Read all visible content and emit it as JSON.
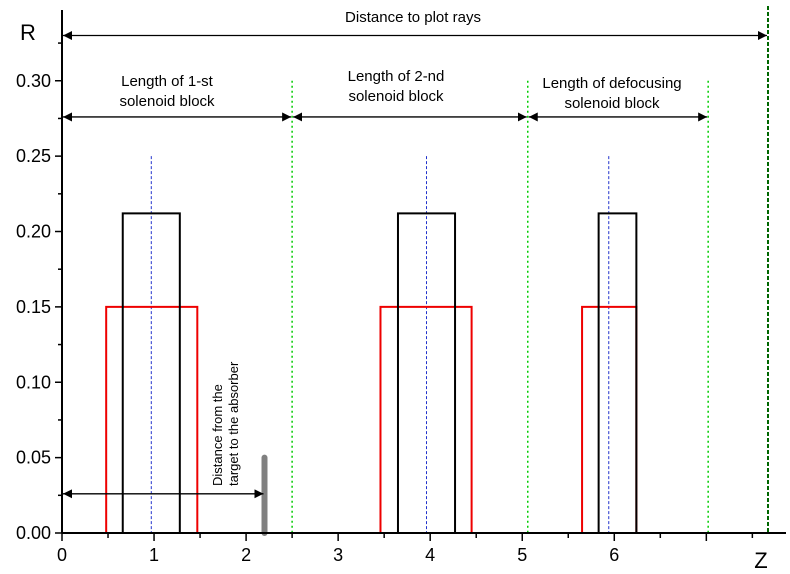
{
  "chart_data": {
    "type": "diagram",
    "xlabel": "Z",
    "ylabel": "R",
    "xlim": [
      0,
      7.67
    ],
    "ylim": [
      0,
      0.335
    ],
    "x_ticks": [
      "0",
      "1",
      "2",
      "3",
      "4",
      "5",
      "6"
    ],
    "y_ticks": [
      "0.00",
      "0.05",
      "0.10",
      "0.15",
      "0.20",
      "0.25",
      "0.30"
    ],
    "x_tick_values": [
      0,
      1,
      2,
      3,
      4,
      5,
      6
    ],
    "y_tick_values": [
      0,
      0.05,
      0.1,
      0.15,
      0.2,
      0.25,
      0.3
    ],
    "solenoids_outer": [
      {
        "x0": 0.48,
        "x1": 1.47,
        "r": 0.15
      },
      {
        "x0": 3.46,
        "x1": 4.45,
        "r": 0.15
      },
      {
        "x0": 5.65,
        "x1": 6.24,
        "r": 0.15
      }
    ],
    "solenoids_inner": [
      {
        "x0": 0.66,
        "x1": 1.28,
        "r": 0.212
      },
      {
        "x0": 3.65,
        "x1": 4.27,
        "r": 0.212
      },
      {
        "x0": 5.83,
        "x1": 6.24,
        "r": 0.212
      }
    ],
    "centers": [
      {
        "x": 0.97,
        "r_top": 0.25
      },
      {
        "x": 3.96,
        "r_top": 0.25
      },
      {
        "x": 5.94,
        "r_top": 0.25
      }
    ],
    "block_boundaries": [
      {
        "x": 2.5,
        "r_top": 0.3
      },
      {
        "x": 5.06,
        "r_top": 0.3
      },
      {
        "x": 7.02,
        "r_top": 0.3
      }
    ],
    "plot_end": {
      "x": 7.67
    },
    "absorber": {
      "x": 2.2,
      "r_top": 0.05
    },
    "arrows": [
      {
        "name": "distance-to-plot-rays",
        "x0": 0,
        "x1": 7.67,
        "r": 0.33
      },
      {
        "name": "length-block-1",
        "x0": 0,
        "x1": 2.5,
        "r": 0.276
      },
      {
        "name": "length-block-2",
        "x0": 2.5,
        "x1": 5.06,
        "r": 0.276
      },
      {
        "name": "length-block-defocusing",
        "x0": 5.06,
        "x1": 7.02,
        "r": 0.276
      },
      {
        "name": "distance-target-absorber",
        "x0": 0,
        "x1": 2.2,
        "r": 0.026
      }
    ],
    "annotations": {
      "plot_rays": "Distance to plot rays",
      "block1_line1": "Length of 1-st",
      "block1_line2": "solenoid block",
      "block2_line1": "Length of 2-nd",
      "block2_line2": "solenoid block",
      "block3_line1": "Length of defocusing",
      "block3_line2": "solenoid block",
      "absorber_line1": "Distance from the",
      "absorber_line2": "target to the absorber"
    },
    "colors": {
      "outer": "#ee0000",
      "inner": "#000000",
      "center": "#2233cc",
      "boundary": "#00cc00",
      "plot_end": "#006600",
      "absorber": "#808080"
    }
  }
}
